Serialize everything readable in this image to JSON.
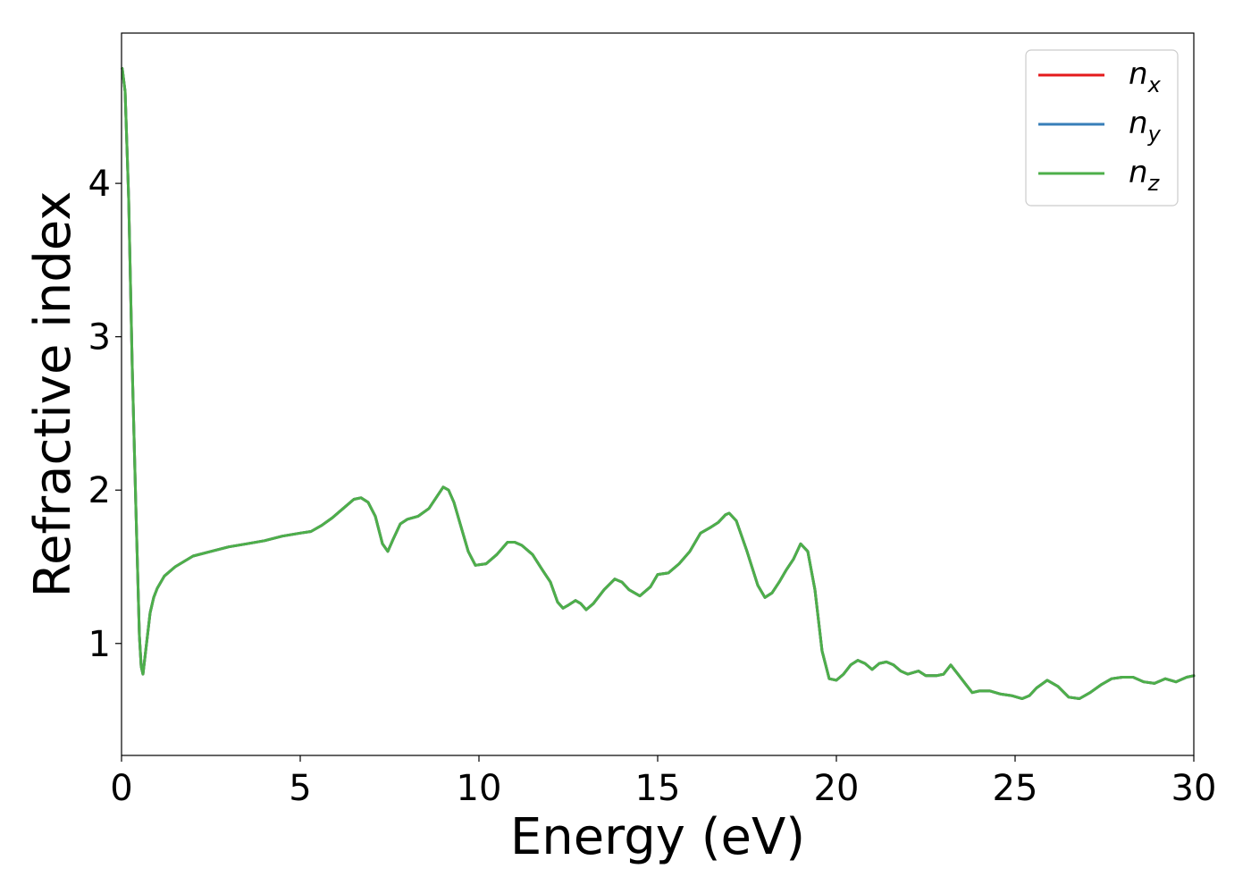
{
  "chart_data": {
    "type": "line",
    "xlabel": "Energy (eV)",
    "ylabel": "Refractive index",
    "xlim": [
      0,
      30
    ],
    "ylim": [
      0.27,
      4.98
    ],
    "xticks": [
      0,
      5,
      10,
      15,
      20,
      25,
      30
    ],
    "yticks": [
      1,
      2,
      3,
      4
    ],
    "grid": false,
    "legend_position": "top-right",
    "x": [
      0.02,
      0.1,
      0.2,
      0.3,
      0.4,
      0.5,
      0.55,
      0.6,
      0.7,
      0.8,
      0.9,
      1.0,
      1.2,
      1.5,
      2.0,
      2.5,
      3.0,
      3.5,
      4.0,
      4.5,
      5.0,
      5.3,
      5.6,
      5.9,
      6.2,
      6.5,
      6.7,
      6.9,
      7.1,
      7.3,
      7.45,
      7.6,
      7.8,
      8.0,
      8.3,
      8.6,
      8.8,
      9.0,
      9.15,
      9.3,
      9.5,
      9.7,
      9.9,
      10.2,
      10.5,
      10.8,
      11.0,
      11.2,
      11.5,
      11.8,
      12.0,
      12.2,
      12.35,
      12.5,
      12.7,
      12.85,
      13.0,
      13.2,
      13.5,
      13.8,
      14.0,
      14.2,
      14.5,
      14.8,
      15.0,
      15.3,
      15.6,
      15.9,
      16.2,
      16.5,
      16.7,
      16.9,
      17.0,
      17.2,
      17.5,
      17.8,
      18.0,
      18.2,
      18.4,
      18.6,
      18.8,
      19.0,
      19.2,
      19.4,
      19.6,
      19.8,
      20.0,
      20.2,
      20.4,
      20.6,
      20.8,
      21.0,
      21.2,
      21.4,
      21.6,
      21.8,
      22.0,
      22.3,
      22.5,
      22.8,
      23.0,
      23.2,
      23.4,
      23.6,
      23.8,
      24.0,
      24.3,
      24.6,
      24.9,
      25.2,
      25.4,
      25.6,
      25.9,
      26.2,
      26.5,
      26.8,
      27.1,
      27.4,
      27.7,
      28.0,
      28.3,
      28.6,
      28.9,
      29.2,
      29.5,
      29.8,
      30.0
    ],
    "series": [
      {
        "name": "n_x",
        "label_base": "n",
        "label_sub": "x",
        "color": "#e41a1c",
        "y": [
          4.75,
          4.6,
          3.9,
          2.8,
          1.9,
          1.05,
          0.85,
          0.8,
          1.0,
          1.2,
          1.3,
          1.36,
          1.44,
          1.5,
          1.57,
          1.6,
          1.63,
          1.65,
          1.67,
          1.7,
          1.72,
          1.73,
          1.77,
          1.82,
          1.88,
          1.94,
          1.95,
          1.92,
          1.83,
          1.65,
          1.6,
          1.68,
          1.78,
          1.81,
          1.83,
          1.88,
          1.95,
          2.02,
          2.0,
          1.92,
          1.76,
          1.6,
          1.51,
          1.52,
          1.58,
          1.66,
          1.66,
          1.64,
          1.58,
          1.47,
          1.4,
          1.27,
          1.23,
          1.25,
          1.28,
          1.26,
          1.22,
          1.26,
          1.35,
          1.42,
          1.4,
          1.35,
          1.31,
          1.37,
          1.45,
          1.46,
          1.52,
          1.6,
          1.72,
          1.76,
          1.79,
          1.84,
          1.85,
          1.8,
          1.6,
          1.38,
          1.3,
          1.33,
          1.4,
          1.48,
          1.55,
          1.65,
          1.6,
          1.35,
          0.95,
          0.77,
          0.76,
          0.8,
          0.86,
          0.89,
          0.87,
          0.83,
          0.87,
          0.88,
          0.86,
          0.82,
          0.8,
          0.82,
          0.79,
          0.79,
          0.8,
          0.86,
          0.8,
          0.74,
          0.68,
          0.69,
          0.69,
          0.67,
          0.66,
          0.64,
          0.66,
          0.71,
          0.76,
          0.72,
          0.65,
          0.64,
          0.68,
          0.73,
          0.77,
          0.78,
          0.78,
          0.75,
          0.74,
          0.77,
          0.75,
          0.78,
          0.79
        ]
      },
      {
        "name": "n_y",
        "label_base": "n",
        "label_sub": "y",
        "color": "#377eb8",
        "y": [
          4.75,
          4.6,
          3.9,
          2.8,
          1.9,
          1.05,
          0.85,
          0.8,
          1.0,
          1.2,
          1.3,
          1.36,
          1.44,
          1.5,
          1.57,
          1.6,
          1.63,
          1.65,
          1.67,
          1.7,
          1.72,
          1.73,
          1.77,
          1.82,
          1.88,
          1.94,
          1.95,
          1.92,
          1.83,
          1.65,
          1.6,
          1.68,
          1.78,
          1.81,
          1.83,
          1.88,
          1.95,
          2.02,
          2.0,
          1.92,
          1.76,
          1.6,
          1.51,
          1.52,
          1.58,
          1.66,
          1.66,
          1.64,
          1.58,
          1.47,
          1.4,
          1.27,
          1.23,
          1.25,
          1.28,
          1.26,
          1.22,
          1.26,
          1.35,
          1.42,
          1.4,
          1.35,
          1.31,
          1.37,
          1.45,
          1.46,
          1.52,
          1.6,
          1.72,
          1.76,
          1.79,
          1.84,
          1.85,
          1.8,
          1.6,
          1.38,
          1.3,
          1.33,
          1.4,
          1.48,
          1.55,
          1.65,
          1.6,
          1.35,
          0.95,
          0.77,
          0.76,
          0.8,
          0.86,
          0.89,
          0.87,
          0.83,
          0.87,
          0.88,
          0.86,
          0.82,
          0.8,
          0.82,
          0.79,
          0.79,
          0.8,
          0.86,
          0.8,
          0.74,
          0.68,
          0.69,
          0.69,
          0.67,
          0.66,
          0.64,
          0.66,
          0.71,
          0.76,
          0.72,
          0.65,
          0.64,
          0.68,
          0.73,
          0.77,
          0.78,
          0.78,
          0.75,
          0.74,
          0.77,
          0.75,
          0.78,
          0.79
        ]
      },
      {
        "name": "n_z",
        "label_base": "n",
        "label_sub": "z",
        "color": "#4daf4a",
        "y": [
          4.75,
          4.6,
          3.9,
          2.8,
          1.9,
          1.05,
          0.85,
          0.8,
          1.0,
          1.2,
          1.3,
          1.36,
          1.44,
          1.5,
          1.57,
          1.6,
          1.63,
          1.65,
          1.67,
          1.7,
          1.72,
          1.73,
          1.77,
          1.82,
          1.88,
          1.94,
          1.95,
          1.92,
          1.83,
          1.65,
          1.6,
          1.68,
          1.78,
          1.81,
          1.83,
          1.88,
          1.95,
          2.02,
          2.0,
          1.92,
          1.76,
          1.6,
          1.51,
          1.52,
          1.58,
          1.66,
          1.66,
          1.64,
          1.58,
          1.47,
          1.4,
          1.27,
          1.23,
          1.25,
          1.28,
          1.26,
          1.22,
          1.26,
          1.35,
          1.42,
          1.4,
          1.35,
          1.31,
          1.37,
          1.45,
          1.46,
          1.52,
          1.6,
          1.72,
          1.76,
          1.79,
          1.84,
          1.85,
          1.8,
          1.6,
          1.38,
          1.3,
          1.33,
          1.4,
          1.48,
          1.55,
          1.65,
          1.6,
          1.35,
          0.95,
          0.77,
          0.76,
          0.8,
          0.86,
          0.89,
          0.87,
          0.83,
          0.87,
          0.88,
          0.86,
          0.82,
          0.8,
          0.82,
          0.79,
          0.79,
          0.8,
          0.86,
          0.8,
          0.74,
          0.68,
          0.69,
          0.69,
          0.67,
          0.66,
          0.64,
          0.66,
          0.71,
          0.76,
          0.72,
          0.65,
          0.64,
          0.68,
          0.73,
          0.77,
          0.78,
          0.78,
          0.75,
          0.74,
          0.77,
          0.75,
          0.78,
          0.79
        ]
      }
    ]
  }
}
